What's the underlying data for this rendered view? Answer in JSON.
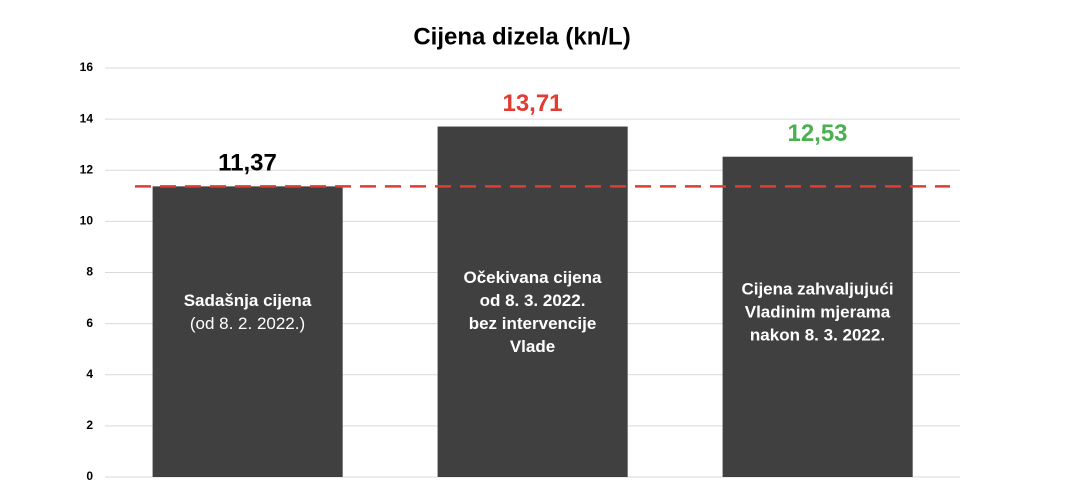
{
  "chart_data": {
    "type": "bar",
    "title": "Cijena dizela (kn/L)",
    "categories": [
      [
        "Sadašnja cijena",
        "(od 8. 2. 2022.)"
      ],
      [
        "Očekivana cijena",
        "od 8. 3. 2022.",
        "bez intervencije",
        "Vlade"
      ],
      [
        "Cijena zahvaljujući",
        "Vladinim mjerama",
        "nakon 8. 3. 2022."
      ]
    ],
    "values": [
      11.37,
      13.71,
      12.53
    ],
    "value_labels": [
      "11,37",
      "13,71",
      "12,53"
    ],
    "value_label_colors": [
      "#000000",
      "#e03c31",
      "#4caf50"
    ],
    "color": "#404040",
    "reference_line": {
      "value": 11.37,
      "color": "#e03c31",
      "style": "dashed"
    },
    "ylim": [
      0,
      16
    ],
    "yticks": [
      0,
      2,
      4,
      6,
      8,
      10,
      12,
      14,
      16
    ],
    "grid": true
  }
}
